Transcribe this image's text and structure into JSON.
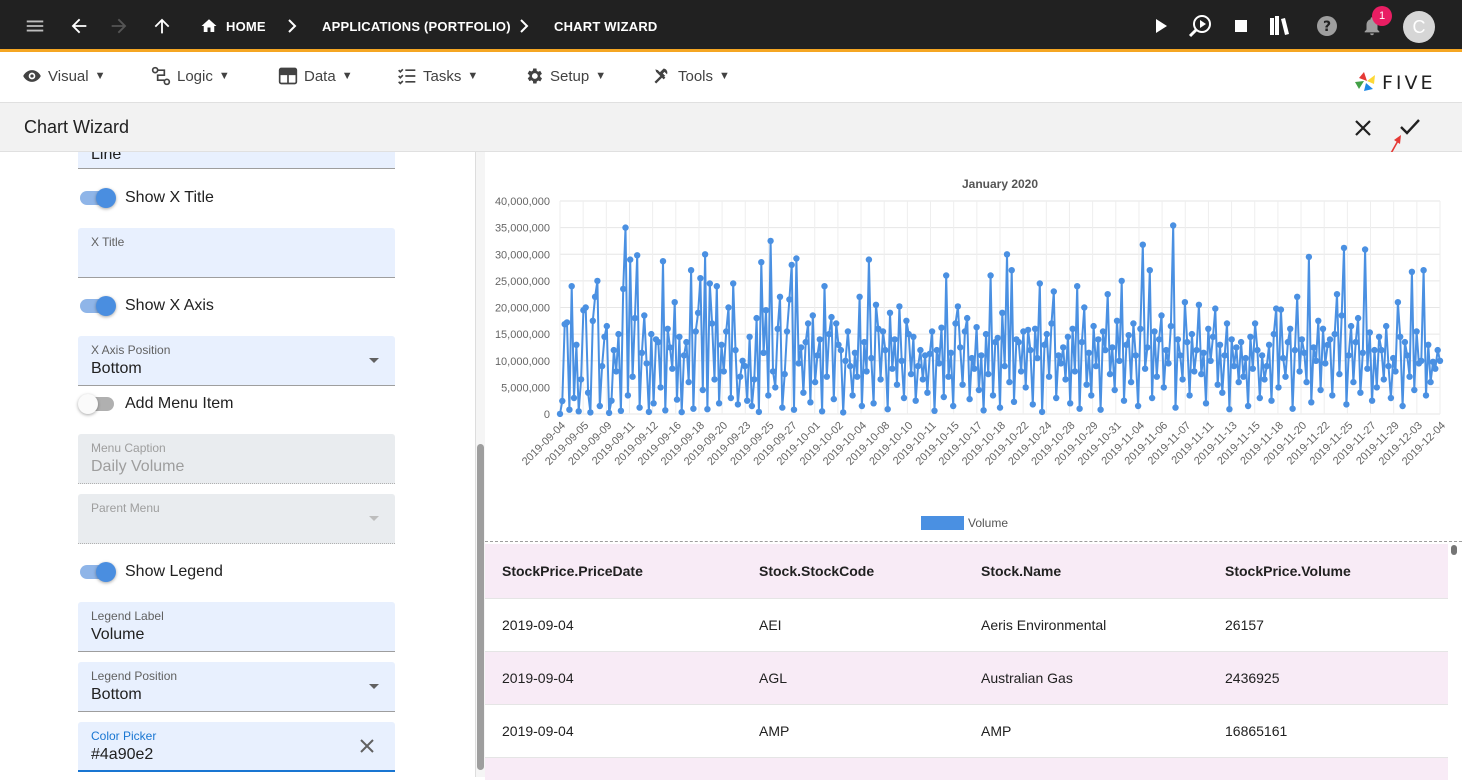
{
  "topbar": {
    "breadcrumbs": [
      "HOME",
      "APPLICATIONS (PORTFOLIO)",
      "CHART WIZARD"
    ],
    "notification_count": "1",
    "avatar_letter": "C"
  },
  "menubar": {
    "items": [
      {
        "label": "Visual",
        "icon": "eye-icon"
      },
      {
        "label": "Logic",
        "icon": "logic-icon"
      },
      {
        "label": "Data",
        "icon": "table-icon"
      },
      {
        "label": "Tasks",
        "icon": "tasks-icon"
      },
      {
        "label": "Setup",
        "icon": "gear-icon"
      },
      {
        "label": "Tools",
        "icon": "tools-icon"
      }
    ],
    "logo_text": "FIVE"
  },
  "wizard": {
    "title": "Chart Wizard"
  },
  "form": {
    "chart_type_value": "Line",
    "show_x_title": {
      "label": "Show X Title",
      "on": true
    },
    "x_title": {
      "label": "X Title",
      "value": ""
    },
    "show_x_axis": {
      "label": "Show X Axis",
      "on": true
    },
    "x_axis_position": {
      "label": "X Axis Position",
      "value": "Bottom"
    },
    "add_menu_item": {
      "label": "Add Menu Item",
      "on": false
    },
    "menu_caption": {
      "label": "Menu Caption",
      "value": "Daily Volume"
    },
    "parent_menu": {
      "label": "Parent Menu",
      "value": ""
    },
    "show_legend": {
      "label": "Show Legend",
      "on": true
    },
    "legend_label": {
      "label": "Legend Label",
      "value": "Volume"
    },
    "legend_position": {
      "label": "Legend Position",
      "value": "Bottom"
    },
    "color_picker": {
      "label": "Color Picker",
      "value": "#4a90e2"
    }
  },
  "colors": {
    "accent": "#4a90e2",
    "topbar": "#212121",
    "topbar_border": "#f5a623",
    "badge": "#e91e63"
  },
  "chart_data": {
    "type": "line",
    "title": "January 2020",
    "legend": "Volume",
    "legend_position": "bottom",
    "ylim": [
      0,
      40000000
    ],
    "yticks": [
      "40,000,000",
      "35,000,000",
      "30,000,000",
      "25,000,000",
      "20,000,000",
      "15,000,000",
      "10,000,000",
      "5,000,000",
      "0"
    ],
    "xtick_labels": [
      "2019-09-04",
      "2019-09-05",
      "2019-09-09",
      "2019-09-11",
      "2019-09-12",
      "2019-09-16",
      "2019-09-18",
      "2019-09-20",
      "2019-09-23",
      "2019-09-25",
      "2019-09-27",
      "2019-10-01",
      "2019-10-02",
      "2019-10-04",
      "2019-10-08",
      "2019-10-10",
      "2019-10-11",
      "2019-10-15",
      "2019-10-17",
      "2019-10-18",
      "2019-10-22",
      "2019-10-24",
      "2019-10-28",
      "2019-10-29",
      "2019-10-31",
      "2019-11-04",
      "2019-11-06",
      "2019-11-07",
      "2019-11-11",
      "2019-11-13",
      "2019-11-15",
      "2019-11-18",
      "2019-11-20",
      "2019-11-22",
      "2019-11-25",
      "2019-11-27",
      "2019-11-29",
      "2019-12-03",
      "2019-12-04"
    ],
    "series": [
      {
        "name": "Volume",
        "color": "#4a90e2",
        "values": [
          26157,
          2436925,
          16865161,
          17200000,
          800000,
          24000000,
          3000000,
          13000000,
          500000,
          6500000,
          19500000,
          20000000,
          4000000,
          300000,
          17500000,
          22000000,
          25000000,
          1500000,
          9000000,
          14500000,
          16500000,
          200000,
          2500000,
          12000000,
          8000000,
          15000000,
          600000,
          23500000,
          35000000,
          3500000,
          29000000,
          7000000,
          18000000,
          29800000,
          1200000,
          11500000,
          18500000,
          9500000,
          400000,
          15000000,
          2000000,
          14000000,
          13500000,
          5000000,
          28700000,
          700000,
          16000000,
          12500000,
          8500000,
          21000000,
          2700000,
          14500000,
          350000,
          11000000,
          13500000,
          6000000,
          27000000,
          1000000,
          15500000,
          19000000,
          25500000,
          4500000,
          30000000,
          900000,
          24500000,
          17000000,
          6500000,
          24000000,
          2000000,
          13000000,
          8000000,
          15500000,
          20000000,
          3000000,
          24500000,
          12000000,
          1800000,
          7000000,
          10000000,
          9000000,
          2500000,
          14500000,
          1500000,
          6500000,
          18000000,
          400000,
          28500000,
          11500000,
          19500000,
          3500000,
          32500000,
          8000000,
          5000000,
          16000000,
          22000000,
          1200000,
          7500000,
          15500000,
          21500000,
          28000000,
          800000,
          29200000,
          9500000,
          12500000,
          4000000,
          13500000,
          17000000,
          2200000,
          18500000,
          6000000,
          11000000,
          14000000,
          500000,
          24000000,
          7000000,
          15000000,
          18200000,
          2800000,
          17000000,
          13000000,
          12000000,
          300000,
          10000000,
          15500000,
          9000000,
          3500000,
          11500000,
          7000000,
          22000000,
          1500000,
          13500000,
          8000000,
          29000000,
          10500000,
          2000000,
          20500000,
          16000000,
          6500000,
          15500000,
          12000000,
          900000,
          19000000,
          8500000,
          14000000,
          5500000,
          20200000,
          10000000,
          3000000,
          17500000,
          15000000,
          7500000,
          14500000,
          2500000,
          9000000,
          12000000,
          6500000,
          11000000,
          4000000,
          11300000,
          15500000,
          600000,
          12000000,
          9500000,
          16200000,
          3200000,
          26000000,
          7000000,
          11500000,
          1500000,
          17000000,
          20200000,
          12500000,
          5500000,
          15500000,
          18000000,
          2800000,
          10500000,
          8500000,
          16300000,
          4500000,
          11000000,
          700000,
          15000000,
          7500000,
          26000000,
          3500000,
          13500000,
          14300000,
          1200000,
          19000000,
          9000000,
          30000000,
          6000000,
          27000000,
          2300000,
          14000000,
          13500000,
          8000000,
          15500000,
          5000000,
          15800000,
          12000000,
          1800000,
          16000000,
          10500000,
          24500000,
          400000,
          13000000,
          15000000,
          7000000,
          17000000,
          23000000,
          3000000,
          11000000,
          9500000,
          12500000,
          6500000,
          14500000,
          2000000,
          16000000,
          8000000,
          24000000,
          1000000,
          13500000,
          20000000,
          5500000,
          11500000,
          3500000,
          16500000,
          9000000,
          14000000,
          800000,
          15500000,
          12000000,
          22500000,
          7500000,
          12500000,
          4500000,
          17500000,
          10000000,
          25000000,
          2500000,
          13000000,
          14800000,
          6000000,
          17000000,
          11000000,
          1500000,
          16000000,
          31800000,
          8500000,
          12500000,
          27000000,
          3000000,
          15500000,
          7000000,
          14000000,
          18500000,
          5000000,
          12000000,
          9500000,
          16500000,
          35400000,
          1200000,
          14000000,
          11000000,
          6500000,
          21000000,
          13500000,
          3500000,
          15000000,
          8000000,
          12000000,
          20500000,
          7500000,
          11500000,
          2000000,
          16000000,
          10000000,
          14500000,
          19800000,
          5500000,
          13000000,
          4000000,
          11000000,
          17000000,
          900000,
          14000000,
          9000000,
          12500000,
          6000000,
          13500000,
          7000000,
          10500000,
          1500000,
          14500000,
          8500000,
          17000000,
          12000000,
          3000000,
          11000000,
          6500000,
          9000000,
          13000000,
          2500000,
          15000000,
          19800000,
          5000000,
          19600000,
          10500000,
          7000000,
          13500000,
          16000000,
          1000000,
          12000000,
          22000000,
          8000000,
          14000000,
          11500000,
          6000000,
          29500000,
          2200000,
          12500000,
          10000000,
          17500000,
          4500000,
          16000000,
          9500000,
          13000000,
          14000000,
          3500000,
          15000000,
          22500000,
          7500000,
          18500000,
          31200000,
          1800000,
          11000000,
          16500000,
          6000000,
          13500000,
          18000000,
          4000000,
          11500000,
          30900000,
          8500000,
          15300000,
          2500000,
          12000000,
          5000000,
          14500000,
          12000000,
          6500000,
          16500000,
          9000000,
          3000000,
          10500000,
          8000000,
          21000000,
          14500000,
          1500000,
          13500000,
          11000000,
          7000000,
          26700000,
          4500000,
          15500000,
          9500000,
          10000000,
          27000000,
          3500000,
          13000000,
          6000000,
          9800000,
          8500000,
          12000000,
          10000000
        ]
      }
    ]
  },
  "table": {
    "columns": [
      "StockPrice.PriceDate",
      "Stock.StockCode",
      "Stock.Name",
      "StockPrice.Volume"
    ],
    "rows": [
      [
        "2019-09-04",
        "AEI",
        "Aeris Environmental",
        "26157"
      ],
      [
        "2019-09-04",
        "AGL",
        "Australian Gas",
        "2436925"
      ],
      [
        "2019-09-04",
        "AMP",
        "AMP",
        "16865161"
      ]
    ]
  }
}
